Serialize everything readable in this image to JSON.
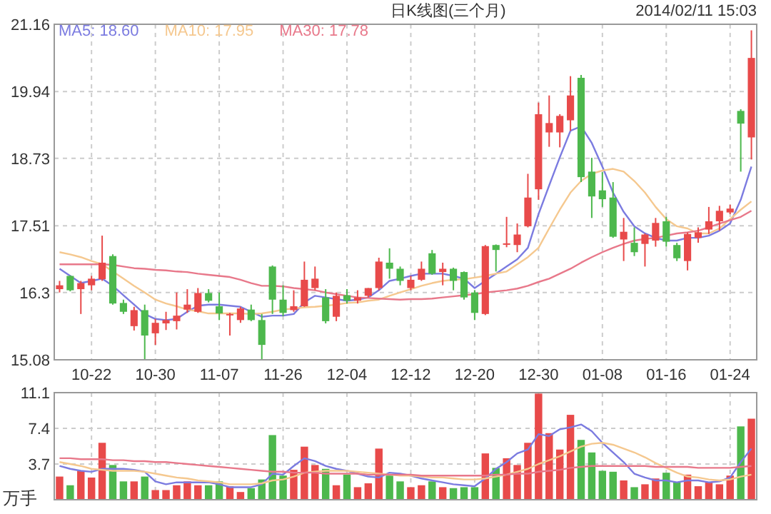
{
  "chart_data": [
    {
      "type": "candlestick",
      "title": "日K线图(三个月)",
      "annotations": [
        "2014/02/11 15:03"
      ],
      "categories": [
        null,
        null,
        null,
        "10-22",
        null,
        null,
        null,
        null,
        null,
        "10-30",
        null,
        null,
        null,
        null,
        null,
        "11-07",
        null,
        null,
        null,
        null,
        null,
        "11-26",
        null,
        null,
        null,
        null,
        null,
        "12-04",
        null,
        null,
        null,
        null,
        null,
        "12-12",
        null,
        null,
        null,
        null,
        null,
        "12-20",
        null,
        null,
        null,
        null,
        null,
        "12-30",
        null,
        null,
        null,
        null,
        null,
        "01-08",
        null,
        null,
        null,
        null,
        null,
        "01-16",
        null,
        null,
        null,
        null,
        null,
        "01-24",
        null,
        null
      ],
      "ohlc": [
        [
          16.36,
          16.51,
          16.3,
          16.43
        ],
        [
          16.6,
          16.61,
          16.32,
          16.34
        ],
        [
          16.36,
          16.51,
          15.91,
          16.47
        ],
        [
          16.43,
          16.6,
          16.34,
          16.55
        ],
        [
          16.54,
          17.33,
          16.51,
          16.84
        ],
        [
          16.96,
          16.99,
          16.08,
          16.1
        ],
        [
          16.11,
          16.17,
          15.91,
          15.95
        ],
        [
          15.69,
          16.04,
          15.61,
          15.98
        ],
        [
          15.98,
          16.08,
          15.08,
          15.52
        ],
        [
          15.56,
          15.82,
          15.35,
          15.75
        ],
        [
          15.74,
          15.95,
          15.62,
          15.8
        ],
        [
          15.78,
          16.3,
          15.63,
          15.88
        ],
        [
          15.99,
          16.36,
          15.93,
          16.08
        ],
        [
          15.95,
          16.38,
          15.93,
          16.29
        ],
        [
          16.29,
          16.36,
          16.12,
          16.15
        ],
        [
          16.05,
          16.3,
          15.8,
          15.92
        ],
        [
          15.9,
          15.93,
          15.52,
          15.91
        ],
        [
          15.8,
          16.04,
          15.75,
          16.01
        ],
        [
          15.99,
          16.08,
          15.78,
          15.8
        ],
        [
          15.8,
          15.91,
          15.08,
          15.35
        ],
        [
          16.77,
          16.79,
          15.91,
          16.17
        ],
        [
          16.17,
          16.43,
          15.87,
          15.93
        ],
        [
          15.98,
          16.34,
          15.95,
          16.05
        ],
        [
          16.05,
          16.86,
          16.04,
          16.53
        ],
        [
          16.38,
          16.77,
          16.34,
          16.55
        ],
        [
          16.21,
          16.36,
          15.74,
          15.78
        ],
        [
          15.86,
          16.3,
          15.78,
          16.24
        ],
        [
          16.25,
          16.36,
          16.1,
          16.15
        ],
        [
          16.15,
          16.34,
          16.1,
          16.21
        ],
        [
          16.24,
          16.38,
          16.21,
          16.38
        ],
        [
          16.38,
          16.93,
          16.34,
          16.86
        ],
        [
          16.84,
          17.1,
          16.55,
          16.73
        ],
        [
          16.73,
          16.77,
          16.43,
          16.51
        ],
        [
          16.38,
          16.6,
          16.34,
          16.53
        ],
        [
          16.53,
          16.86,
          16.51,
          16.73
        ],
        [
          17.01,
          17.07,
          16.62,
          16.64
        ],
        [
          16.67,
          16.84,
          16.43,
          16.73
        ],
        [
          16.73,
          16.75,
          16.34,
          16.51
        ],
        [
          16.67,
          16.68,
          16.17,
          16.21
        ],
        [
          16.3,
          16.34,
          15.8,
          15.93
        ],
        [
          15.91,
          17.16,
          15.89,
          17.14
        ],
        [
          17.16,
          17.17,
          16.68,
          17.07
        ],
        [
          17.18,
          17.67,
          17.12,
          17.19
        ],
        [
          17.16,
          17.55,
          17.03,
          17.35
        ],
        [
          17.5,
          18.45,
          17.48,
          18.02
        ],
        [
          18.17,
          19.74,
          17.98,
          19.53
        ],
        [
          19.2,
          19.87,
          18.94,
          19.37
        ],
        [
          19.2,
          19.53,
          18.93,
          19.5
        ],
        [
          19.42,
          20.22,
          19.23,
          19.87
        ],
        [
          20.19,
          20.24,
          18.3,
          18.39
        ],
        [
          18.49,
          18.74,
          17.65,
          18.04
        ],
        [
          18.15,
          18.48,
          17.85,
          17.99
        ],
        [
          18.02,
          18.3,
          17.29,
          17.31
        ],
        [
          17.26,
          17.65,
          16.87,
          17.4
        ],
        [
          17.2,
          17.48,
          16.96,
          17.03
        ],
        [
          17.18,
          17.37,
          16.77,
          17.35
        ],
        [
          17.24,
          17.65,
          17.13,
          17.56
        ],
        [
          17.59,
          17.67,
          17.13,
          17.22
        ],
        [
          17.16,
          17.2,
          16.87,
          16.92
        ],
        [
          16.87,
          17.39,
          16.7,
          17.36
        ],
        [
          17.29,
          17.48,
          17.2,
          17.39
        ],
        [
          17.44,
          17.85,
          17.36,
          17.59
        ],
        [
          17.59,
          17.87,
          17.42,
          17.78
        ],
        [
          17.75,
          17.89,
          17.72,
          17.82
        ],
        [
          19.59,
          19.62,
          18.49,
          19.36
        ],
        [
          19.11,
          21.05,
          18.71,
          20.55
        ]
      ],
      "colors": [
        "#e84a4a",
        "#4db84d",
        "#e84a4a",
        "#e84a4a",
        "#e84a4a",
        "#4db84d",
        "#4db84d",
        "#e84a4a",
        "#4db84d",
        "#e84a4a",
        "#e84a4a",
        "#e84a4a",
        "#e84a4a",
        "#e84a4a",
        "#4db84d",
        "#4db84d",
        "#e84a4a",
        "#e84a4a",
        "#4db84d",
        "#4db84d",
        "#4db84d",
        "#4db84d",
        "#e84a4a",
        "#e84a4a",
        "#e84a4a",
        "#4db84d",
        "#e84a4a",
        "#4db84d",
        "#e84a4a",
        "#e84a4a",
        "#e84a4a",
        "#4db84d",
        "#4db84d",
        "#e84a4a",
        "#e84a4a",
        "#4db84d",
        "#e84a4a",
        "#4db84d",
        "#4db84d",
        "#4db84d",
        "#e84a4a",
        "#4db84d",
        "#e84a4a",
        "#e84a4a",
        "#e84a4a",
        "#e84a4a",
        "#e84a4a",
        "#e84a4a",
        "#e84a4a",
        "#4db84d",
        "#4db84d",
        "#4db84d",
        "#4db84d",
        "#e84a4a",
        "#4db84d",
        "#e84a4a",
        "#e84a4a",
        "#4db84d",
        "#4db84d",
        "#e84a4a",
        "#e84a4a",
        "#e84a4a",
        "#e84a4a",
        "#e84a4a",
        "#4db84d",
        "#e84a4a"
      ],
      "series": [
        {
          "type": "line",
          "name": "MA5: 18.60",
          "color": "#7b7be0",
          "values": [
            16.73,
            16.6,
            16.47,
            16.51,
            16.55,
            16.42,
            16.25,
            16.08,
            15.91,
            15.82,
            15.8,
            15.82,
            15.95,
            16.06,
            16.08,
            16.08,
            16.06,
            16.04,
            15.95,
            15.86,
            15.88,
            15.88,
            15.91,
            16.12,
            16.24,
            16.21,
            16.18,
            16.15,
            16.17,
            16.21,
            16.34,
            16.51,
            16.55,
            16.6,
            16.64,
            16.64,
            16.64,
            16.6,
            16.55,
            16.38,
            16.51,
            16.64,
            16.77,
            16.9,
            17.11,
            17.72,
            18.24,
            18.75,
            19.23,
            19.31,
            19.01,
            18.58,
            18.11,
            17.76,
            17.5,
            17.37,
            17.29,
            17.24,
            17.24,
            17.29,
            17.29,
            17.33,
            17.42,
            17.55,
            17.98,
            18.58
          ]
        },
        {
          "type": "line",
          "name": "MA10: 17.95",
          "color": "#f5c88f",
          "values": [
            17.03,
            16.99,
            16.94,
            16.87,
            16.81,
            16.68,
            16.55,
            16.42,
            16.3,
            16.17,
            16.1,
            16.05,
            15.99,
            15.96,
            15.92,
            15.92,
            15.92,
            15.92,
            15.91,
            15.92,
            15.95,
            15.99,
            16.01,
            16.03,
            16.04,
            16.06,
            16.08,
            16.11,
            16.12,
            16.15,
            16.17,
            16.24,
            16.3,
            16.36,
            16.42,
            16.47,
            16.51,
            16.53,
            16.54,
            16.57,
            16.6,
            16.64,
            16.68,
            16.81,
            16.94,
            17.11,
            17.46,
            17.8,
            18.11,
            18.32,
            18.45,
            18.51,
            18.54,
            18.49,
            18.32,
            18.11,
            17.85,
            17.63,
            17.5,
            17.46,
            17.37,
            17.37,
            17.46,
            17.63,
            17.8,
            17.95
          ]
        },
        {
          "type": "line",
          "name": "MA30: 17.78",
          "color": "#e8788a",
          "values": [
            16.81,
            16.81,
            16.81,
            16.81,
            16.81,
            16.8,
            16.77,
            16.74,
            16.73,
            16.71,
            16.7,
            16.68,
            16.67,
            16.64,
            16.62,
            16.6,
            16.58,
            16.53,
            16.47,
            16.42,
            16.42,
            16.41,
            16.38,
            16.36,
            16.34,
            16.3,
            16.27,
            16.24,
            16.21,
            16.2,
            16.19,
            16.18,
            16.17,
            16.18,
            16.18,
            16.19,
            16.21,
            16.23,
            16.25,
            16.27,
            16.3,
            16.32,
            16.34,
            16.37,
            16.42,
            16.49,
            16.55,
            16.64,
            16.73,
            16.84,
            16.94,
            17.03,
            17.11,
            17.18,
            17.24,
            17.27,
            17.29,
            17.33,
            17.37,
            17.39,
            17.42,
            17.48,
            17.55,
            17.61,
            17.67,
            17.78
          ]
        }
      ],
      "ylim": [
        15.08,
        21.16
      ],
      "yticks": [
        15.08,
        16.3,
        17.51,
        18.73,
        19.94,
        21.16
      ],
      "grid": true,
      "legend": "top left"
    },
    {
      "type": "bar",
      "ylabel": "万手",
      "categories": [
        null,
        null,
        null,
        null,
        null,
        null,
        null,
        null,
        null,
        null,
        null,
        null,
        null,
        null,
        null,
        null,
        null,
        null,
        null,
        null,
        null,
        null,
        null,
        null,
        null,
        null,
        null,
        null,
        null,
        null,
        null,
        null,
        null,
        null,
        null,
        null,
        null,
        null,
        null,
        null,
        null,
        null,
        null,
        null,
        null,
        null,
        null,
        null,
        null,
        null,
        null,
        null,
        null,
        null,
        null,
        null,
        null,
        null,
        null,
        null,
        null,
        null,
        null,
        null,
        null,
        null
      ],
      "series": [
        {
          "type": "bar",
          "values": [
            2.4,
            1.5,
            3.0,
            2.3,
            5.9,
            3.6,
            1.9,
            1.9,
            2.4,
            1.0,
            1.0,
            1.5,
            1.9,
            1.5,
            1.5,
            1.9,
            1.4,
            0.8,
            1.2,
            2.1,
            6.7,
            2.5,
            3.1,
            5.5,
            3.6,
            3.2,
            1.5,
            2.6,
            1.3,
            1.7,
            5.3,
            2.5,
            1.9,
            1.3,
            1.5,
            1.9,
            1.3,
            1.2,
            1.3,
            1.3,
            4.8,
            3.3,
            4.3,
            3.6,
            5.9,
            11.0,
            6.9,
            5.2,
            8.8,
            6.2,
            4.9,
            3.0,
            2.9,
            2.0,
            1.3,
            1.6,
            2.2,
            2.8,
            1.8,
            2.6,
            1.4,
            1.8,
            1.6,
            2.5,
            7.6,
            8.4
          ],
          "colors": [
            "#e84a4a",
            "#4db84d",
            "#e84a4a",
            "#e84a4a",
            "#e84a4a",
            "#4db84d",
            "#4db84d",
            "#e84a4a",
            "#4db84d",
            "#e84a4a",
            "#e84a4a",
            "#e84a4a",
            "#e84a4a",
            "#e84a4a",
            "#4db84d",
            "#4db84d",
            "#e84a4a",
            "#e84a4a",
            "#4db84d",
            "#4db84d",
            "#4db84d",
            "#4db84d",
            "#e84a4a",
            "#e84a4a",
            "#e84a4a",
            "#4db84d",
            "#e84a4a",
            "#4db84d",
            "#e84a4a",
            "#e84a4a",
            "#e84a4a",
            "#4db84d",
            "#4db84d",
            "#e84a4a",
            "#e84a4a",
            "#4db84d",
            "#e84a4a",
            "#4db84d",
            "#4db84d",
            "#4db84d",
            "#e84a4a",
            "#4db84d",
            "#e84a4a",
            "#e84a4a",
            "#e84a4a",
            "#e84a4a",
            "#e84a4a",
            "#e84a4a",
            "#e84a4a",
            "#4db84d",
            "#4db84d",
            "#4db84d",
            "#4db84d",
            "#e84a4a",
            "#4db84d",
            "#e84a4a",
            "#e84a4a",
            "#4db84d",
            "#4db84d",
            "#e84a4a",
            "#e84a4a",
            "#e84a4a",
            "#e84a4a",
            "#e84a4a",
            "#4db84d",
            "#e84a4a"
          ]
        },
        {
          "type": "line",
          "color": "#7b7be0",
          "values": [
            3.5,
            3.2,
            3.0,
            2.9,
            3.2,
            3.2,
            3.2,
            3.1,
            2.9,
            1.9,
            1.6,
            1.8,
            1.8,
            1.8,
            1.8,
            1.6,
            1.3,
            1.3,
            1.3,
            1.6,
            2.7,
            2.6,
            3.5,
            4.3,
            4.0,
            3.5,
            3.2,
            3.0,
            2.7,
            2.4,
            2.3,
            2.8,
            2.7,
            2.5,
            2.2,
            2.0,
            1.8,
            1.6,
            1.5,
            1.4,
            2.2,
            3.2,
            3.9,
            4.8,
            5.2,
            6.8,
            6.6,
            7.3,
            7.5,
            7.8,
            7.1,
            5.9,
            4.9,
            3.9,
            2.7,
            2.3,
            2.0,
            2.0,
            1.8,
            2.0,
            2.0,
            1.8,
            1.9,
            2.3,
            3.9,
            5.3
          ]
        },
        {
          "type": "line",
          "color": "#f5c88f",
          "values": [
            3.9,
            3.7,
            3.5,
            3.2,
            3.1,
            3.0,
            3.0,
            3.0,
            2.9,
            2.7,
            2.5,
            2.3,
            2.2,
            2.0,
            1.9,
            1.8,
            1.6,
            1.6,
            1.6,
            1.7,
            2.0,
            2.1,
            2.4,
            2.8,
            2.9,
            3.0,
            3.0,
            3.0,
            2.9,
            2.8,
            2.7,
            2.6,
            2.5,
            2.5,
            2.4,
            2.3,
            2.3,
            2.2,
            2.1,
            2.1,
            2.2,
            2.4,
            2.6,
            2.9,
            3.2,
            3.7,
            4.1,
            4.5,
            5.0,
            5.5,
            5.8,
            5.9,
            5.7,
            5.3,
            4.9,
            4.4,
            3.8,
            3.3,
            2.8,
            2.4,
            2.3,
            2.1,
            2.0,
            2.1,
            2.4,
            2.6
          ]
        },
        {
          "type": "line",
          "color": "#e8788a",
          "values": [
            4.3,
            4.3,
            4.2,
            4.2,
            4.2,
            4.1,
            4.1,
            4.0,
            4.0,
            3.9,
            3.9,
            3.8,
            3.7,
            3.6,
            3.5,
            3.4,
            3.3,
            3.2,
            3.1,
            3.0,
            2.9,
            2.9,
            2.8,
            2.8,
            2.8,
            2.7,
            2.7,
            2.7,
            2.7,
            2.6,
            2.6,
            2.6,
            2.6,
            2.6,
            2.5,
            2.5,
            2.5,
            2.5,
            2.5,
            2.5,
            2.5,
            2.6,
            2.6,
            2.7,
            2.7,
            2.9,
            3.0,
            3.1,
            3.3,
            3.4,
            3.5,
            3.5,
            3.5,
            3.5,
            3.5,
            3.5,
            3.4,
            3.4,
            3.4,
            3.4,
            3.3,
            3.3,
            3.3,
            3.3,
            3.4,
            3.5
          ]
        }
      ],
      "ylim": [
        0,
        11.1
      ],
      "yticks": [
        3.7,
        7.4,
        11.1
      ],
      "grid": true
    }
  ]
}
